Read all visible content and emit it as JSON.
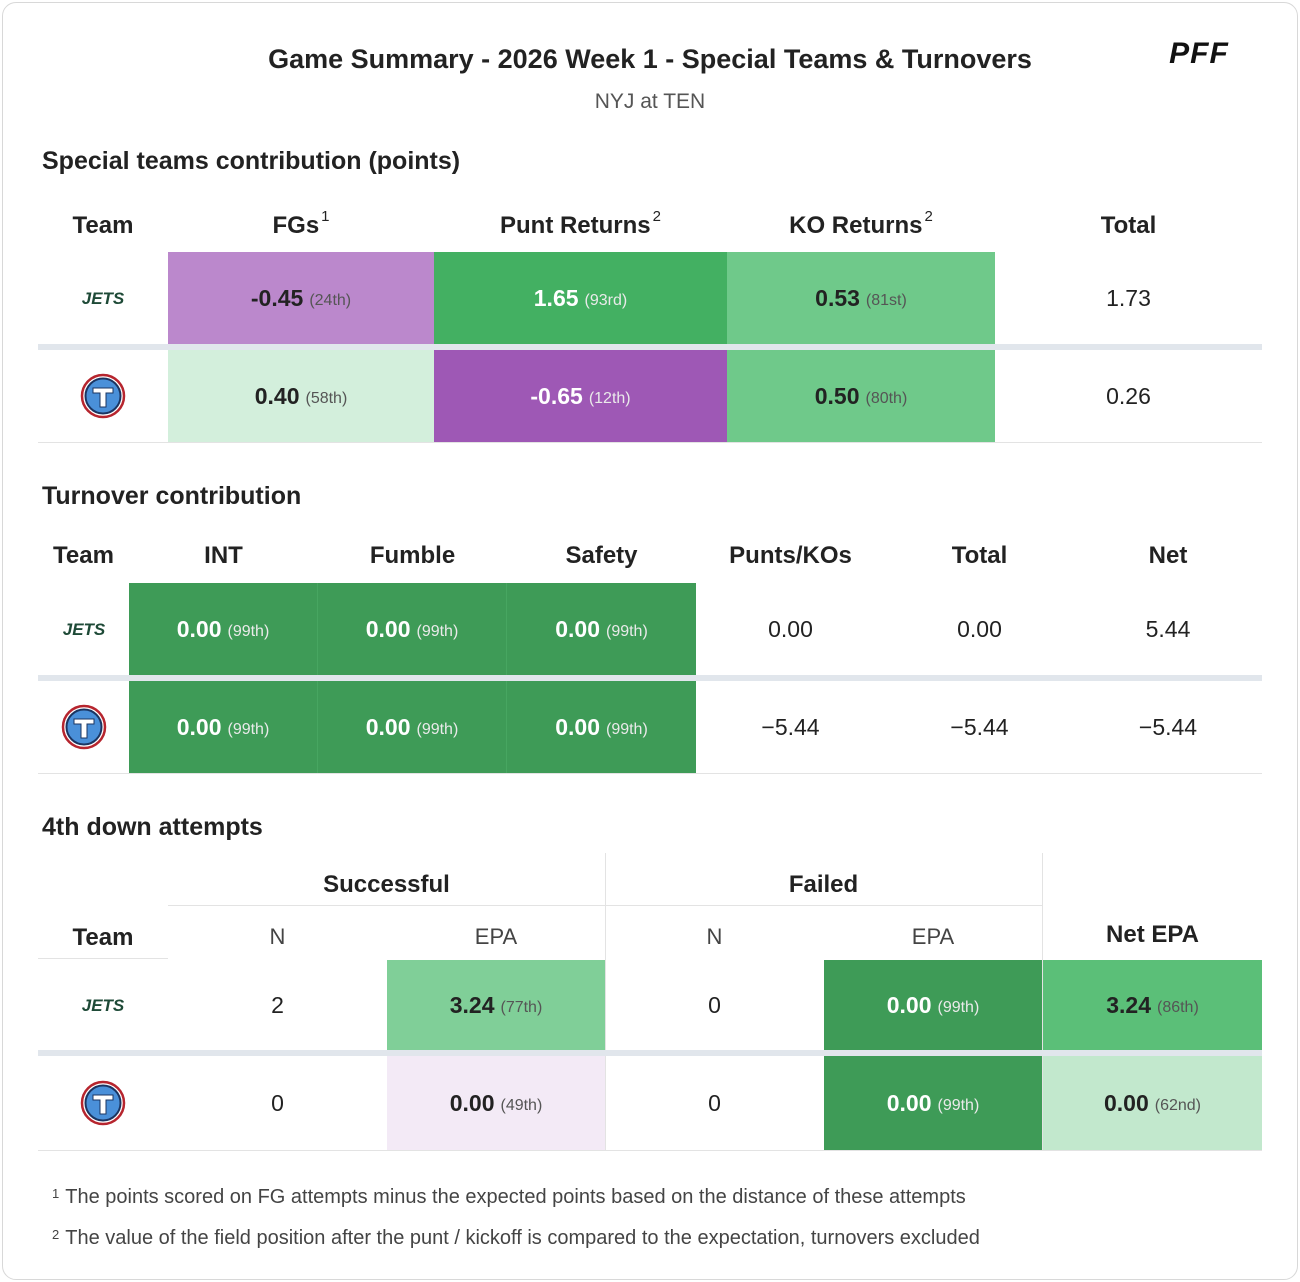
{
  "header": {
    "title": "Game Summary - 2026 Week 1 - Special Teams & Turnovers",
    "subtitle": "NYJ at TEN",
    "logo_text": "PFF"
  },
  "special_teams": {
    "section_title": "Special teams contribution (points)",
    "columns": {
      "team": "Team",
      "fgs": "FGs",
      "fgs_note": "1",
      "punt": "Punt Returns",
      "punt_note": "2",
      "ko": "KO Returns",
      "ko_note": "2",
      "total": "Total"
    },
    "rows": [
      {
        "team": "NYJ",
        "logo_text": "JETS",
        "fgs": {
          "v": "-0.45",
          "r": "(24th)"
        },
        "punt": {
          "v": "1.65",
          "r": "(93rd)"
        },
        "ko": {
          "v": "0.53",
          "r": "(81st)"
        },
        "total": "1.73"
      },
      {
        "team": "TEN",
        "fgs": {
          "v": "0.40",
          "r": "(58th)"
        },
        "punt": {
          "v": "-0.65",
          "r": "(12th)"
        },
        "ko": {
          "v": "0.50",
          "r": "(80th)"
        },
        "total": "0.26"
      }
    ]
  },
  "turnovers": {
    "section_title": "Turnover contribution",
    "columns": {
      "team": "Team",
      "int": "INT",
      "fumble": "Fumble",
      "safety": "Safety",
      "punts": "Punts/KOs",
      "total": "Total",
      "net": "Net"
    },
    "rows": [
      {
        "team": "NYJ",
        "logo_text": "JETS",
        "int": {
          "v": "0.00",
          "r": "(99th)"
        },
        "fumble": {
          "v": "0.00",
          "r": "(99th)"
        },
        "safety": {
          "v": "0.00",
          "r": "(99th)"
        },
        "punts": "0.00",
        "total": "0.00",
        "net": "5.44"
      },
      {
        "team": "TEN",
        "int": {
          "v": "0.00",
          "r": "(99th)"
        },
        "fumble": {
          "v": "0.00",
          "r": "(99th)"
        },
        "safety": {
          "v": "0.00",
          "r": "(99th)"
        },
        "punts": "−5.44",
        "total": "−5.44",
        "net": "−5.44"
      }
    ]
  },
  "fourth_down": {
    "section_title": "4th down attempts",
    "groups": {
      "successful": "Successful",
      "failed": "Failed"
    },
    "columns": {
      "team": "Team",
      "n": "N",
      "epa": "EPA",
      "net_epa": "Net EPA"
    },
    "rows": [
      {
        "team": "NYJ",
        "logo_text": "JETS",
        "succ_n": "2",
        "succ_epa": {
          "v": "3.24",
          "r": "(77th)"
        },
        "fail_n": "0",
        "fail_epa": {
          "v": "0.00",
          "r": "(99th)"
        },
        "net": {
          "v": "3.24",
          "r": "(86th)"
        }
      },
      {
        "team": "TEN",
        "succ_n": "0",
        "succ_epa": {
          "v": "0.00",
          "r": "(49th)"
        },
        "fail_n": "0",
        "fail_epa": {
          "v": "0.00",
          "r": "(99th)"
        },
        "net": {
          "v": "0.00",
          "r": "(62nd)"
        }
      }
    ]
  },
  "footnotes": [
    {
      "mark": "1",
      "text": "The points scored on FG attempts minus the expected points based on the distance of these attempts"
    },
    {
      "mark": "2",
      "text": "The value of the field position after the punt / kickoff is compared to the expectation, turnovers excluded"
    }
  ],
  "colors": {
    "purple_light": "#bb88cc",
    "purple_dark": "#9e58b5",
    "purple_pale": "#f3eaf6",
    "green_dark": "#3e9b57",
    "green_mid": "#43b062",
    "green_light": "#6fc98a",
    "green_lighter": "#80cf98",
    "green_pale": "#d3efdc",
    "green_pale2": "#c2e8cd",
    "jets_green": "#1e4a37",
    "titans_navy": "#1b3561",
    "titans_blue": "#4a90d9",
    "titans_red": "#b6252e"
  }
}
